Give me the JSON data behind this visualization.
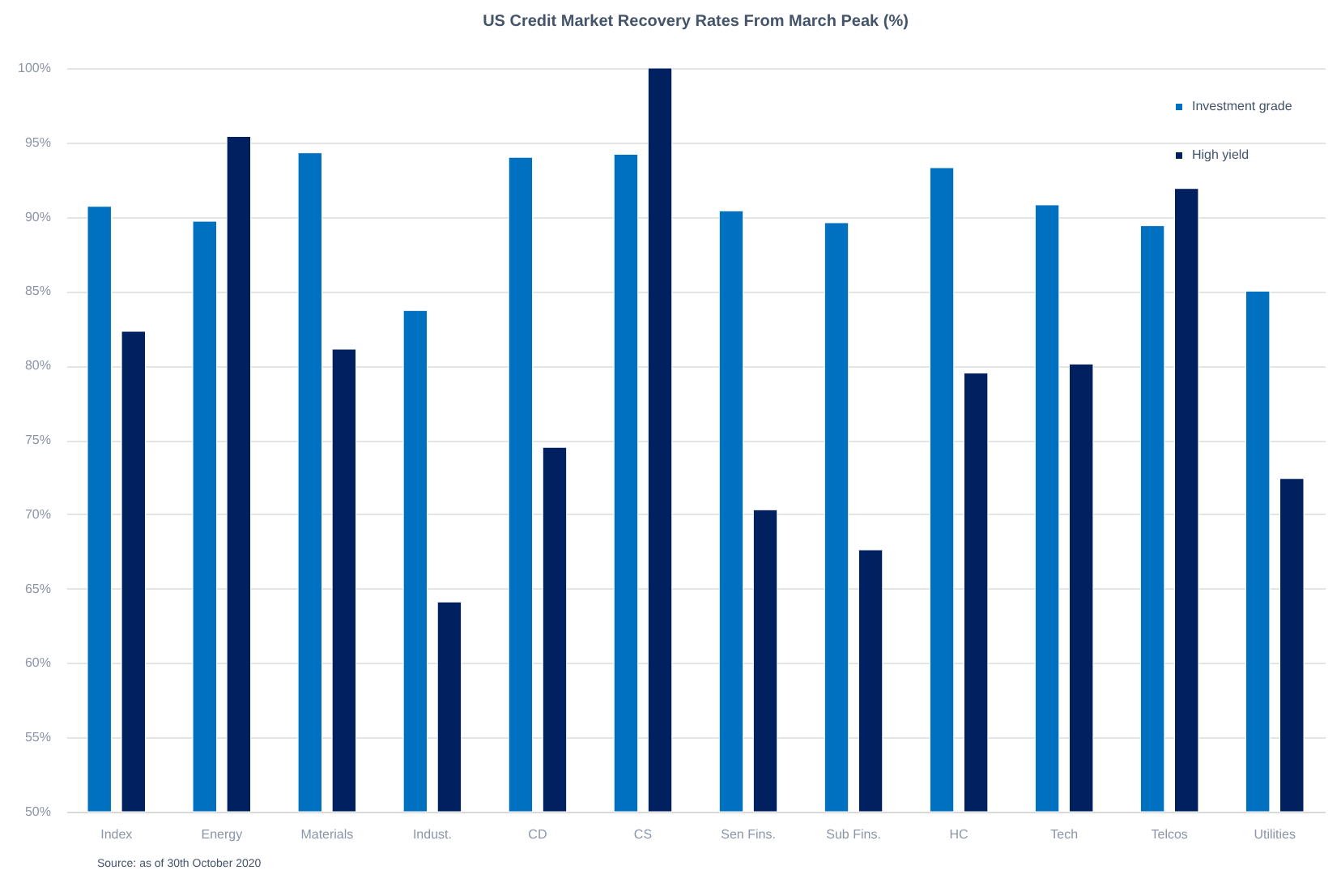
{
  "chart_data": {
    "type": "bar",
    "title": "US Credit Market Recovery Rates From March Peak (%)",
    "categories": [
      "Index",
      "Energy",
      "Materials",
      "Indust.",
      "CD",
      "CS",
      "Sen Fins.",
      "Sub Fins.",
      "HC",
      "Tech",
      "Telcos",
      "Utilities"
    ],
    "series": [
      {
        "name": "Investment grade",
        "color": "#0070c0",
        "values": [
          90.7,
          89.7,
          94.3,
          83.7,
          94.0,
          94.2,
          90.4,
          89.6,
          93.3,
          90.8,
          89.4,
          85.0
        ]
      },
      {
        "name": "High yield",
        "color": "#002060",
        "values": [
          82.3,
          95.4,
          81.1,
          64.1,
          74.5,
          100,
          70.3,
          67.6,
          79.5,
          80.1,
          91.9,
          72.4
        ]
      }
    ],
    "ylim": [
      50,
      100
    ],
    "yticks": [
      {
        "value": 50,
        "label": "50%"
      },
      {
        "value": 55,
        "label": "55%"
      },
      {
        "value": 60,
        "label": "60%"
      },
      {
        "value": 65,
        "label": "65%"
      },
      {
        "value": 70,
        "label": "70%"
      },
      {
        "value": 75,
        "label": "75%"
      },
      {
        "value": 80,
        "label": "80%"
      },
      {
        "value": 85,
        "label": "85%"
      },
      {
        "value": 90,
        "label": "90%"
      },
      {
        "value": 95,
        "label": "95%"
      },
      {
        "value": 100,
        "label": "100%"
      }
    ],
    "grid": "y",
    "legend": "top right",
    "annotations": [
      "Source: as of 30th October 2020"
    ]
  }
}
